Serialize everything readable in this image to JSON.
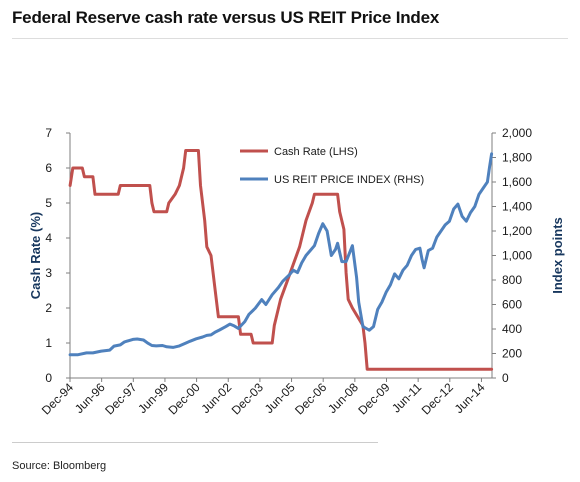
{
  "title": "Federal Reserve cash rate versus US REIT Price Index",
  "source": "Source: Bloomberg",
  "colors": {
    "cash_rate": "#c0504d",
    "reit": "#4f81bd",
    "axis_label": "#17375e"
  },
  "chart_data": {
    "type": "line",
    "x_ticks": [
      "Dec-94",
      "Jun-96",
      "Dec-97",
      "Jun-99",
      "Dec-00",
      "Jun-02",
      "Dec-03",
      "Jun-05",
      "Dec-06",
      "Jun-08",
      "Dec-09",
      "Jun-11",
      "Dec-12",
      "Jun-14"
    ],
    "x_range": [
      1994.917,
      2014.917
    ],
    "left_axis": {
      "label": "Cash Rate (%)",
      "ylim": [
        0,
        7
      ],
      "ticks": [
        "0",
        "1",
        "2",
        "3",
        "4",
        "5",
        "6",
        "7"
      ]
    },
    "right_axis": {
      "label": "Index points",
      "ylim": [
        0,
        2000
      ],
      "ticks": [
        "0",
        "200",
        "400",
        "600",
        "800",
        "1,000",
        "1,200",
        "1,400",
        "1,600",
        "1,800",
        "2,000"
      ]
    },
    "legend_position": "top-center",
    "series": [
      {
        "name": "Cash Rate (LHS)",
        "axis": "left",
        "points": [
          [
            1994.92,
            5.5
          ],
          [
            1995.05,
            6.0
          ],
          [
            1995.5,
            6.0
          ],
          [
            1995.6,
            5.75
          ],
          [
            1996.0,
            5.75
          ],
          [
            1996.1,
            5.25
          ],
          [
            1997.2,
            5.25
          ],
          [
            1997.3,
            5.5
          ],
          [
            1998.7,
            5.5
          ],
          [
            1998.8,
            5.0
          ],
          [
            1998.9,
            4.75
          ],
          [
            1999.5,
            4.75
          ],
          [
            1999.6,
            5.0
          ],
          [
            1999.9,
            5.25
          ],
          [
            2000.1,
            5.5
          ],
          [
            2000.3,
            6.0
          ],
          [
            2000.4,
            6.5
          ],
          [
            2001.0,
            6.5
          ],
          [
            2001.1,
            5.5
          ],
          [
            2001.3,
            4.5
          ],
          [
            2001.4,
            3.75
          ],
          [
            2001.6,
            3.5
          ],
          [
            2001.8,
            2.5
          ],
          [
            2001.95,
            1.75
          ],
          [
            2002.3,
            1.75
          ],
          [
            2002.9,
            1.75
          ],
          [
            2003.0,
            1.25
          ],
          [
            2003.5,
            1.25
          ],
          [
            2003.6,
            1.0
          ],
          [
            2004.5,
            1.0
          ],
          [
            2004.6,
            1.5
          ],
          [
            2004.9,
            2.25
          ],
          [
            2005.2,
            2.75
          ],
          [
            2005.5,
            3.25
          ],
          [
            2005.8,
            3.75
          ],
          [
            2006.1,
            4.5
          ],
          [
            2006.4,
            5.0
          ],
          [
            2006.5,
            5.25
          ],
          [
            2007.6,
            5.25
          ],
          [
            2007.7,
            4.75
          ],
          [
            2007.9,
            4.25
          ],
          [
            2008.0,
            3.0
          ],
          [
            2008.1,
            2.25
          ],
          [
            2008.3,
            2.0
          ],
          [
            2008.8,
            1.5
          ],
          [
            2008.9,
            1.0
          ],
          [
            2009.0,
            0.25
          ],
          [
            2014.9,
            0.25
          ]
        ]
      },
      {
        "name": "US REIT PRICE INDEX (RHS)",
        "axis": "right",
        "points": [
          [
            1994.92,
            190
          ],
          [
            1995.3,
            190
          ],
          [
            1995.7,
            205
          ],
          [
            1996.0,
            205
          ],
          [
            1996.4,
            220
          ],
          [
            1996.8,
            228
          ],
          [
            1997.0,
            260
          ],
          [
            1997.3,
            270
          ],
          [
            1997.5,
            295
          ],
          [
            1997.9,
            315
          ],
          [
            1998.1,
            318
          ],
          [
            1998.4,
            310
          ],
          [
            1998.6,
            285
          ],
          [
            1998.8,
            265
          ],
          [
            1999.0,
            262
          ],
          [
            1999.3,
            265
          ],
          [
            1999.5,
            255
          ],
          [
            1999.8,
            250
          ],
          [
            2000.1,
            262
          ],
          [
            2000.4,
            285
          ],
          [
            2000.6,
            300
          ],
          [
            2000.9,
            320
          ],
          [
            2001.2,
            335
          ],
          [
            2001.4,
            348
          ],
          [
            2001.6,
            352
          ],
          [
            2001.8,
            375
          ],
          [
            2002.0,
            392
          ],
          [
            2002.3,
            420
          ],
          [
            2002.5,
            440
          ],
          [
            2002.7,
            425
          ],
          [
            2002.9,
            405
          ],
          [
            2003.2,
            460
          ],
          [
            2003.4,
            520
          ],
          [
            2003.7,
            570
          ],
          [
            2004.0,
            640
          ],
          [
            2004.2,
            600
          ],
          [
            2004.5,
            680
          ],
          [
            2004.8,
            740
          ],
          [
            2005.0,
            790
          ],
          [
            2005.3,
            840
          ],
          [
            2005.5,
            880
          ],
          [
            2005.7,
            860
          ],
          [
            2005.9,
            940
          ],
          [
            2006.1,
            1000
          ],
          [
            2006.3,
            1040
          ],
          [
            2006.5,
            1080
          ],
          [
            2006.7,
            1180
          ],
          [
            2006.9,
            1260
          ],
          [
            2007.1,
            1200
          ],
          [
            2007.3,
            1000
          ],
          [
            2007.5,
            1050
          ],
          [
            2007.6,
            1100
          ],
          [
            2007.8,
            950
          ],
          [
            2008.0,
            950
          ],
          [
            2008.3,
            1080
          ],
          [
            2008.5,
            820
          ],
          [
            2008.6,
            620
          ],
          [
            2008.8,
            420
          ],
          [
            2009.0,
            400
          ],
          [
            2009.1,
            390
          ],
          [
            2009.3,
            420
          ],
          [
            2009.5,
            560
          ],
          [
            2009.7,
            620
          ],
          [
            2009.9,
            700
          ],
          [
            2010.1,
            760
          ],
          [
            2010.3,
            850
          ],
          [
            2010.5,
            810
          ],
          [
            2010.7,
            880
          ],
          [
            2010.9,
            920
          ],
          [
            2011.1,
            1000
          ],
          [
            2011.3,
            1050
          ],
          [
            2011.5,
            1060
          ],
          [
            2011.6,
            970
          ],
          [
            2011.7,
            900
          ],
          [
            2011.9,
            1040
          ],
          [
            2012.1,
            1060
          ],
          [
            2012.3,
            1150
          ],
          [
            2012.5,
            1200
          ],
          [
            2012.7,
            1250
          ],
          [
            2012.9,
            1280
          ],
          [
            2013.1,
            1380
          ],
          [
            2013.3,
            1420
          ],
          [
            2013.5,
            1320
          ],
          [
            2013.7,
            1280
          ],
          [
            2013.9,
            1350
          ],
          [
            2014.1,
            1400
          ],
          [
            2014.3,
            1500
          ],
          [
            2014.5,
            1550
          ],
          [
            2014.7,
            1600
          ],
          [
            2014.8,
            1720
          ],
          [
            2014.9,
            1830
          ]
        ]
      }
    ]
  }
}
